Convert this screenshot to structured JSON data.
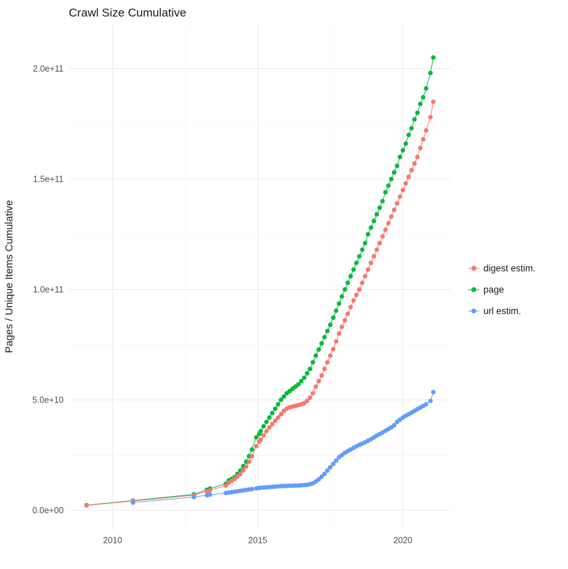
{
  "page": {
    "background": "#ffffff"
  },
  "chart_data": {
    "type": "scatter",
    "title": "Crawl Size Cumulative",
    "xlabel": "",
    "ylabel": "Pages / Unique Items Cumulative",
    "legend_position": "right",
    "grid": true,
    "xlim": [
      2008.5,
      2021.65
    ],
    "ylim": [
      -9000000000.0,
      220000000000.0
    ],
    "x_ticks": {
      "values": [
        2010,
        2015,
        2020
      ],
      "labels": [
        "2010",
        "2015",
        "2020"
      ],
      "minor": [
        2012.5,
        2017.5
      ]
    },
    "y_ticks": {
      "values": [
        0,
        50000000000.0,
        100000000000.0,
        150000000000.0,
        200000000000.0
      ],
      "labels": [
        "0.0e+00",
        "5.0e+10",
        "1.0e+11",
        "1.5e+11",
        "2.0e+11"
      ],
      "minor": [
        25000000000.0,
        75000000000.0,
        125000000000.0,
        175000000000.0
      ]
    },
    "colors": {
      "grid_major": "#ebebeb",
      "grid_minor": "#f4f4f4",
      "tick_text": "#4d4d4d",
      "title_text": "#1a1a1a"
    },
    "series": [
      {
        "id": "digest-estim",
        "name": "digest estim.",
        "color": "#F8766D",
        "z": 2,
        "points": [
          [
            2009.1,
            2200000000.0
          ],
          [
            2010.7,
            4200000000.0
          ],
          [
            2012.8,
            6800000000.0
          ],
          [
            2013.25,
            8600000000.0
          ],
          [
            2013.35,
            9000000000.0
          ],
          [
            2013.9,
            11200000000.0
          ],
          [
            2014.0,
            12500000000.0
          ],
          [
            2014.1,
            13300000000.0
          ],
          [
            2014.2,
            14200000000.0
          ],
          [
            2014.3,
            15300000000.0
          ],
          [
            2014.4,
            16500000000.0
          ],
          [
            2014.5,
            18000000000.0
          ],
          [
            2014.6,
            19800000000.0
          ],
          [
            2014.7,
            22000000000.0
          ],
          [
            2014.8,
            24500000000.0
          ],
          [
            2014.95,
            29000000000.0
          ],
          [
            2015.05,
            31000000000.0
          ],
          [
            2015.1,
            32000000000.0
          ],
          [
            2015.2,
            34000000000.0
          ],
          [
            2015.3,
            35800000000.0
          ],
          [
            2015.4,
            37500000000.0
          ],
          [
            2015.5,
            39000000000.0
          ],
          [
            2015.6,
            40500000000.0
          ],
          [
            2015.7,
            42000000000.0
          ],
          [
            2015.8,
            43500000000.0
          ],
          [
            2015.9,
            45000000000.0
          ],
          [
            2016.0,
            46000000000.0
          ],
          [
            2016.1,
            46600000000.0
          ],
          [
            2016.2,
            47000000000.0
          ],
          [
            2016.3,
            47300000000.0
          ],
          [
            2016.4,
            47600000000.0
          ],
          [
            2016.5,
            48000000000.0
          ],
          [
            2016.6,
            48500000000.0
          ],
          [
            2016.7,
            49500000000.0
          ],
          [
            2016.8,
            51000000000.0
          ],
          [
            2016.9,
            53000000000.0
          ],
          [
            2017.0,
            56000000000.0
          ],
          [
            2017.1,
            58500000000.0
          ],
          [
            2017.2,
            61000000000.0
          ],
          [
            2017.3,
            64000000000.0
          ],
          [
            2017.4,
            67000000000.0
          ],
          [
            2017.5,
            70000000000.0
          ],
          [
            2017.6,
            73000000000.0
          ],
          [
            2017.7,
            76500000000.0
          ],
          [
            2017.8,
            80000000000.0
          ],
          [
            2017.9,
            83000000000.0
          ],
          [
            2018.0,
            86000000000.0
          ],
          [
            2018.1,
            89000000000.0
          ],
          [
            2018.2,
            92000000000.0
          ],
          [
            2018.3,
            95000000000.0
          ],
          [
            2018.4,
            97500000000.0
          ],
          [
            2018.5,
            100000000000.0
          ],
          [
            2018.6,
            103000000000.0
          ],
          [
            2018.7,
            106000000000.0
          ],
          [
            2018.8,
            109000000000.0
          ],
          [
            2018.9,
            112000000000.0
          ],
          [
            2019.0,
            115000000000.0
          ],
          [
            2019.1,
            118000000000.0
          ],
          [
            2019.2,
            121000000000.0
          ],
          [
            2019.3,
            124000000000.0
          ],
          [
            2019.4,
            127000000000.0
          ],
          [
            2019.5,
            130000000000.0
          ],
          [
            2019.6,
            133000000000.0
          ],
          [
            2019.7,
            136000000000.0
          ],
          [
            2019.8,
            139000000000.0
          ],
          [
            2019.9,
            142000000000.0
          ],
          [
            2020.0,
            145000000000.0
          ],
          [
            2020.1,
            148000000000.0
          ],
          [
            2020.2,
            151000000000.0
          ],
          [
            2020.3,
            154000000000.0
          ],
          [
            2020.4,
            157000000000.0
          ],
          [
            2020.5,
            160000000000.0
          ],
          [
            2020.6,
            164000000000.0
          ],
          [
            2020.7,
            168000000000.0
          ],
          [
            2020.8,
            172000000000.0
          ],
          [
            2020.95,
            178000000000.0
          ],
          [
            2021.05,
            185000000000.0
          ]
        ]
      },
      {
        "id": "page",
        "name": "page",
        "color": "#00BA38",
        "z": 1,
        "points": [
          [
            2009.1,
            2300000000.0
          ],
          [
            2010.7,
            4400000000.0
          ],
          [
            2012.8,
            7200000000.0
          ],
          [
            2013.25,
            9300000000.0
          ],
          [
            2013.35,
            9800000000.0
          ],
          [
            2013.9,
            12000000000.0
          ],
          [
            2014.0,
            13500000000.0
          ],
          [
            2014.1,
            14200000000.0
          ],
          [
            2014.2,
            15000000000.0
          ],
          [
            2014.3,
            16500000000.0
          ],
          [
            2014.4,
            18000000000.0
          ],
          [
            2014.5,
            20000000000.0
          ],
          [
            2014.6,
            22000000000.0
          ],
          [
            2014.7,
            24500000000.0
          ],
          [
            2014.8,
            27500000000.0
          ],
          [
            2014.95,
            33000000000.0
          ],
          [
            2015.05,
            34500000000.0
          ],
          [
            2015.1,
            35800000000.0
          ],
          [
            2015.2,
            38000000000.0
          ],
          [
            2015.3,
            40000000000.0
          ],
          [
            2015.4,
            42000000000.0
          ],
          [
            2015.5,
            44000000000.0
          ],
          [
            2015.6,
            46000000000.0
          ],
          [
            2015.7,
            48000000000.0
          ],
          [
            2015.8,
            50000000000.0
          ],
          [
            2015.9,
            51500000000.0
          ],
          [
            2016.0,
            53000000000.0
          ],
          [
            2016.1,
            54000000000.0
          ],
          [
            2016.2,
            55000000000.0
          ],
          [
            2016.3,
            56000000000.0
          ],
          [
            2016.4,
            57000000000.0
          ],
          [
            2016.5,
            58500000000.0
          ],
          [
            2016.6,
            60000000000.0
          ],
          [
            2016.7,
            62000000000.0
          ],
          [
            2016.8,
            64000000000.0
          ],
          [
            2016.9,
            67000000000.0
          ],
          [
            2017.0,
            70000000000.0
          ],
          [
            2017.1,
            72800000000.0
          ],
          [
            2017.2,
            75600000000.0
          ],
          [
            2017.3,
            78400000000.0
          ],
          [
            2017.4,
            81200000000.0
          ],
          [
            2017.5,
            84000000000.0
          ],
          [
            2017.6,
            87200000000.0
          ],
          [
            2017.7,
            90400000000.0
          ],
          [
            2017.8,
            93600000000.0
          ],
          [
            2017.9,
            96800000000.0
          ],
          [
            2018.0,
            100000000000.0
          ],
          [
            2018.1,
            103000000000.0
          ],
          [
            2018.2,
            106000000000.0
          ],
          [
            2018.3,
            109000000000.0
          ],
          [
            2018.4,
            112000000000.0
          ],
          [
            2018.5,
            115000000000.0
          ],
          [
            2018.6,
            118000000000.0
          ],
          [
            2018.7,
            121000000000.0
          ],
          [
            2018.8,
            125000000000.0
          ],
          [
            2018.9,
            128000000000.0
          ],
          [
            2019.0,
            131000000000.0
          ],
          [
            2019.1,
            134000000000.0
          ],
          [
            2019.2,
            137000000000.0
          ],
          [
            2019.3,
            140000000000.0
          ],
          [
            2019.4,
            144000000000.0
          ],
          [
            2019.5,
            147000000000.0
          ],
          [
            2019.6,
            150000000000.0
          ],
          [
            2019.7,
            153000000000.0
          ],
          [
            2019.8,
            156000000000.0
          ],
          [
            2019.9,
            160000000000.0
          ],
          [
            2020.0,
            163000000000.0
          ],
          [
            2020.1,
            166000000000.0
          ],
          [
            2020.2,
            170000000000.0
          ],
          [
            2020.3,
            173000000000.0
          ],
          [
            2020.4,
            177000000000.0
          ],
          [
            2020.5,
            180000000000.0
          ],
          [
            2020.6,
            184000000000.0
          ],
          [
            2020.7,
            187000000000.0
          ],
          [
            2020.8,
            191000000000.0
          ],
          [
            2020.95,
            198000000000.0
          ],
          [
            2021.05,
            205000000000.0
          ]
        ]
      },
      {
        "id": "url-estim",
        "name": "url estim.",
        "color": "#619CFF",
        "z": 3,
        "points": [
          [
            2010.7,
            3500000000.0
          ],
          [
            2012.8,
            6000000000.0
          ],
          [
            2013.25,
            6800000000.0
          ],
          [
            2013.35,
            7000000000.0
          ],
          [
            2013.9,
            7800000000.0
          ],
          [
            2014.0,
            8000000000.0
          ],
          [
            2014.1,
            8200000000.0
          ],
          [
            2014.2,
            8400000000.0
          ],
          [
            2014.3,
            8600000000.0
          ],
          [
            2014.4,
            8800000000.0
          ],
          [
            2014.5,
            9000000000.0
          ],
          [
            2014.6,
            9200000000.0
          ],
          [
            2014.7,
            9400000000.0
          ],
          [
            2014.8,
            9600000000.0
          ],
          [
            2014.95,
            9900000000.0
          ],
          [
            2015.05,
            10100000000.0
          ],
          [
            2015.1,
            10200000000.0
          ],
          [
            2015.2,
            10300000000.0
          ],
          [
            2015.3,
            10400000000.0
          ],
          [
            2015.4,
            10500000000.0
          ],
          [
            2015.5,
            10600000000.0
          ],
          [
            2015.6,
            10700000000.0
          ],
          [
            2015.7,
            10800000000.0
          ],
          [
            2015.8,
            10900000000.0
          ],
          [
            2015.9,
            11000000000.0
          ],
          [
            2016.0,
            11000000000.0
          ],
          [
            2016.1,
            11100000000.0
          ],
          [
            2016.2,
            11100000000.0
          ],
          [
            2016.3,
            11200000000.0
          ],
          [
            2016.4,
            11200000000.0
          ],
          [
            2016.5,
            11300000000.0
          ],
          [
            2016.6,
            11400000000.0
          ],
          [
            2016.7,
            11500000000.0
          ],
          [
            2016.8,
            11800000000.0
          ],
          [
            2016.9,
            12200000000.0
          ],
          [
            2017.0,
            13000000000.0
          ],
          [
            2017.1,
            14000000000.0
          ],
          [
            2017.2,
            15200000000.0
          ],
          [
            2017.3,
            16500000000.0
          ],
          [
            2017.4,
            18000000000.0
          ],
          [
            2017.5,
            19500000000.0
          ],
          [
            2017.6,
            21000000000.0
          ],
          [
            2017.7,
            22500000000.0
          ],
          [
            2017.8,
            24000000000.0
          ],
          [
            2017.9,
            25000000000.0
          ],
          [
            2018.0,
            26000000000.0
          ],
          [
            2018.1,
            26800000000.0
          ],
          [
            2018.2,
            27500000000.0
          ],
          [
            2018.3,
            28200000000.0
          ],
          [
            2018.4,
            29000000000.0
          ],
          [
            2018.5,
            29600000000.0
          ],
          [
            2018.6,
            30200000000.0
          ],
          [
            2018.7,
            30800000000.0
          ],
          [
            2018.8,
            31500000000.0
          ],
          [
            2018.9,
            32200000000.0
          ],
          [
            2019.0,
            33000000000.0
          ],
          [
            2019.1,
            33800000000.0
          ],
          [
            2019.2,
            34500000000.0
          ],
          [
            2019.3,
            35200000000.0
          ],
          [
            2019.4,
            36000000000.0
          ],
          [
            2019.5,
            36800000000.0
          ],
          [
            2019.6,
            37500000000.0
          ],
          [
            2019.7,
            38500000000.0
          ],
          [
            2019.8,
            40000000000.0
          ],
          [
            2019.9,
            41000000000.0
          ],
          [
            2020.0,
            42000000000.0
          ],
          [
            2020.1,
            42800000000.0
          ],
          [
            2020.2,
            43500000000.0
          ],
          [
            2020.3,
            44200000000.0
          ],
          [
            2020.4,
            45000000000.0
          ],
          [
            2020.5,
            45800000000.0
          ],
          [
            2020.6,
            46500000000.0
          ],
          [
            2020.7,
            47200000000.0
          ],
          [
            2020.8,
            48000000000.0
          ],
          [
            2020.95,
            49500000000.0
          ],
          [
            2021.05,
            53500000000.0
          ]
        ]
      }
    ]
  }
}
